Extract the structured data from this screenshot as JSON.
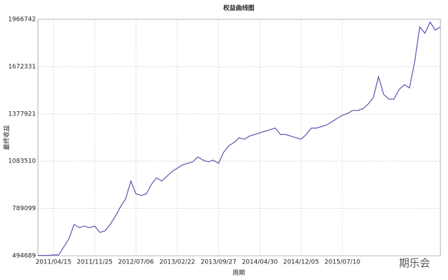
{
  "chart_data": {
    "type": "line",
    "title": "权益曲线图",
    "x_label": "周期",
    "y_label": "最终收益",
    "watermark": "期乐会",
    "categories": [
      null,
      null,
      null,
      "2011/04/15",
      null,
      null,
      null,
      null,
      null,
      null,
      null,
      "2011/11/25",
      null,
      null,
      null,
      null,
      null,
      null,
      null,
      "2012/07/06",
      null,
      null,
      null,
      null,
      null,
      null,
      null,
      "2013/02/22",
      null,
      null,
      null,
      null,
      null,
      null,
      null,
      "2013/09/27",
      null,
      null,
      null,
      null,
      null,
      null,
      null,
      "2014/04/30",
      null,
      null,
      null,
      null,
      null,
      null,
      null,
      "2014/12/05",
      null,
      null,
      null,
      null,
      null,
      null,
      null,
      "2015/07/10",
      null,
      null,
      null,
      null,
      null,
      null,
      null,
      null,
      null,
      null,
      null,
      null,
      null,
      null,
      null,
      null,
      null,
      null,
      null
    ],
    "series": [
      {
        "name": "权益",
        "color": "#5a4fb0",
        "values": [
          497000,
          497000,
          497000,
          500000,
          500000,
          550000,
          600000,
          690000,
          670000,
          680000,
          670000,
          680000,
          640000,
          650000,
          690000,
          740000,
          800000,
          850000,
          960000,
          880000,
          870000,
          880000,
          940000,
          980000,
          960000,
          990000,
          1020000,
          1040000,
          1060000,
          1070000,
          1080000,
          1110000,
          1090000,
          1080000,
          1090000,
          1070000,
          1140000,
          1180000,
          1200000,
          1230000,
          1220000,
          1240000,
          1250000,
          1260000,
          1270000,
          1280000,
          1290000,
          1250000,
          1250000,
          1240000,
          1230000,
          1220000,
          1250000,
          1290000,
          1290000,
          1300000,
          1310000,
          1330000,
          1350000,
          1370000,
          1380000,
          1400000,
          1400000,
          1410000,
          1440000,
          1480000,
          1610000,
          1500000,
          1470000,
          1470000,
          1530000,
          1560000,
          1540000,
          1700000,
          1920000,
          1880000,
          1950000,
          1900000,
          1920000
        ]
      }
    ],
    "ylim": [
      494689,
      1966742
    ],
    "yticks": [
      494689,
      789099,
      1083510,
      1377921,
      1672331,
      1966742
    ],
    "grid": true
  }
}
